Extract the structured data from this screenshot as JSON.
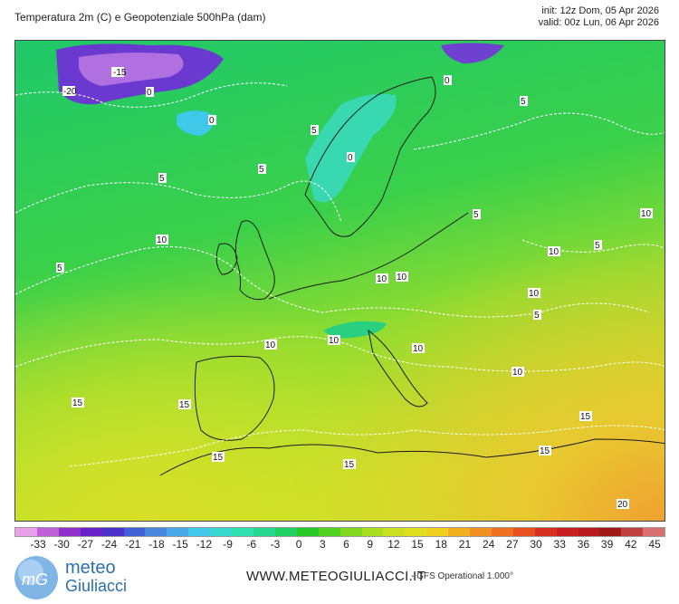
{
  "header": {
    "title": "Temperatura 2m (C) e Geopotenziale 500hPa (dam)",
    "init": "init: 12z Dom, 05 Apr 2026",
    "valid": "valid: 00z Lun, 06 Apr 2026"
  },
  "map": {
    "contour_labels": [
      {
        "text": "-15"
      },
      {
        "text": "-20"
      },
      {
        "text": "0"
      },
      {
        "text": "0"
      },
      {
        "text": "0"
      },
      {
        "text": "0"
      },
      {
        "text": "5"
      },
      {
        "text": "5"
      },
      {
        "text": "5"
      },
      {
        "text": "5"
      },
      {
        "text": "5"
      },
      {
        "text": "5"
      },
      {
        "text": "5"
      },
      {
        "text": "5"
      },
      {
        "text": "10"
      },
      {
        "text": "10"
      },
      {
        "text": "10"
      },
      {
        "text": "10"
      },
      {
        "text": "10"
      },
      {
        "text": "10"
      },
      {
        "text": "10"
      },
      {
        "text": "10"
      },
      {
        "text": "10"
      },
      {
        "text": "10"
      },
      {
        "text": "15"
      },
      {
        "text": "15"
      },
      {
        "text": "15"
      },
      {
        "text": "15"
      },
      {
        "text": "15"
      },
      {
        "text": "15"
      },
      {
        "text": "20"
      }
    ]
  },
  "scale": {
    "colors": [
      "#e8a0e8",
      "#c060d8",
      "#9030c8",
      "#6a20c8",
      "#4a30c8",
      "#4060d8",
      "#4a88e0",
      "#48a8e8",
      "#40c8e8",
      "#38d8d0",
      "#30e0b0",
      "#28d890",
      "#20d060",
      "#28c828",
      "#50d020",
      "#80d820",
      "#a8e020",
      "#c8e020",
      "#e0e020",
      "#f0d020",
      "#f0b020",
      "#f09020",
      "#f07020",
      "#e85020",
      "#d83020",
      "#c82020",
      "#b81820",
      "#a01818",
      "#c04040",
      "#d87070"
    ],
    "labels": [
      "-33",
      "-30",
      "-27",
      "-24",
      "-21",
      "-18",
      "-15",
      "-12",
      "-9",
      "-6",
      "-3",
      "0",
      "3",
      "6",
      "9",
      "12",
      "15",
      "18",
      "21",
      "24",
      "27",
      "30",
      "33",
      "36",
      "39",
      "42",
      "45"
    ]
  },
  "footer": {
    "brand_line1": "meteo",
    "brand_line2": "Giuliacci",
    "website": "WWW.METEOGIULIACCI.IT",
    "model": "- GFS Operational 1.000°"
  }
}
